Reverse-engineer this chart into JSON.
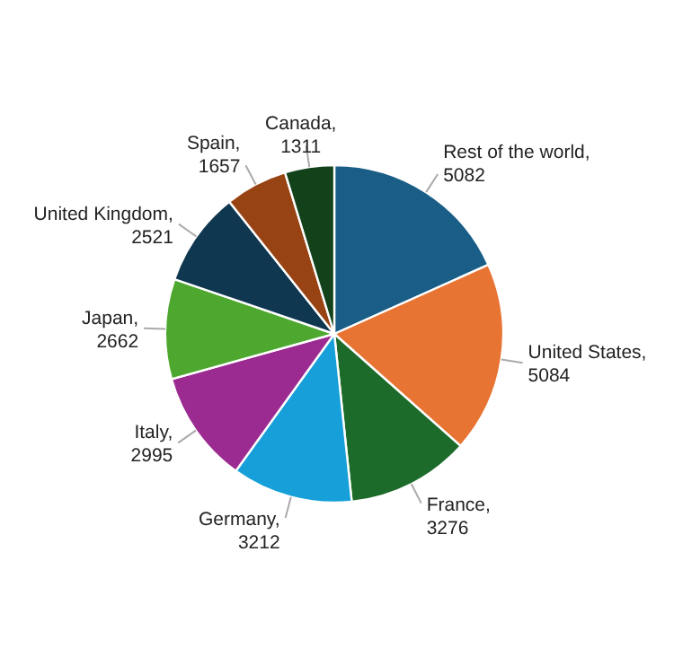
{
  "chart_data": {
    "type": "pie",
    "categories": [
      "Rest of the world",
      "United States",
      "France",
      "Germany",
      "Italy",
      "Japan",
      "United Kingdom",
      "Spain",
      "Canada"
    ],
    "values": [
      5082,
      5084,
      3276,
      3212,
      2995,
      2662,
      2521,
      1657,
      1311
    ],
    "colors": [
      "#1a5e87",
      "#e87433",
      "#1c6b2a",
      "#169fd8",
      "#9b2b91",
      "#4ea82f",
      "#0f374f",
      "#984314",
      "#12411a"
    ],
    "value_labels": [
      ", 5082",
      ", 5084",
      ", 3276",
      ", 3212",
      ", 2995",
      ", 2662",
      ", 2521",
      ", 1657",
      ", 1311"
    ],
    "legend": false
  }
}
